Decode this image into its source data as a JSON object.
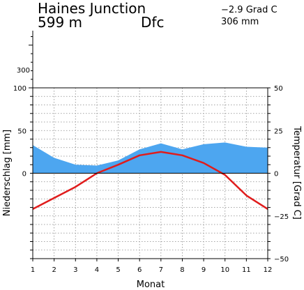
{
  "header": {
    "station": "Haines Junction",
    "elevation": "599 m",
    "climate_class": "Dfc",
    "mean_temp": "−2.9 Grad C",
    "annual_precip": "306 mm"
  },
  "colors": {
    "precip_fill": "#4da6f0",
    "temp_line": "#e01c1c",
    "grid": "#888888"
  },
  "chart_data": {
    "type": "area",
    "xlabel": "Monat",
    "ylabel_left": "Niederschlag [mm]",
    "ylabel_right": "Temperatur [Grad C]",
    "x": [
      1,
      2,
      3,
      4,
      5,
      6,
      7,
      8,
      9,
      10,
      11,
      12
    ],
    "x_ticks": [
      "1",
      "2",
      "3",
      "4",
      "5",
      "6",
      "7",
      "8",
      "9",
      "10",
      "11",
      "12"
    ],
    "left_ticks": [
      "100",
      "50",
      "0"
    ],
    "left_extra_tick": "300",
    "right_ticks": [
      "50",
      "25",
      "0",
      "−25",
      "−50"
    ],
    "precip_ylim": [
      -100,
      100
    ],
    "temp_ylim": [
      -50,
      50
    ],
    "series": [
      {
        "kind": "precip",
        "values": [
          33,
          18,
          10,
          9,
          15,
          28,
          35,
          28,
          34,
          36,
          31,
          30
        ]
      },
      {
        "kind": "temp",
        "values": [
          -21,
          -14.5,
          -8,
          0,
          5,
          10.5,
          12.5,
          10.5,
          6,
          -1,
          -13,
          -21
        ]
      }
    ],
    "grid": true
  }
}
